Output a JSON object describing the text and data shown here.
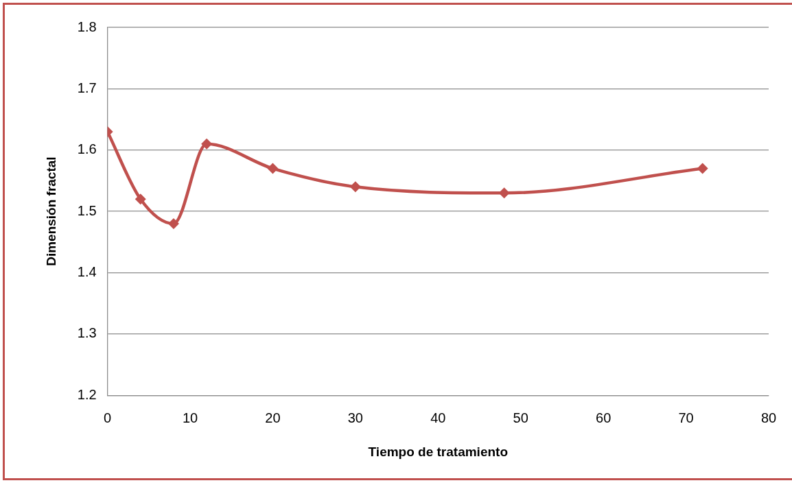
{
  "chart_data": {
    "type": "line",
    "xlabel": "Tiempo de tratamiento",
    "ylabel": "Dimensión fractal",
    "x": [
      0,
      4,
      8,
      12,
      20,
      30,
      48,
      72
    ],
    "series": [
      {
        "color": "#c0504d",
        "values": [
          1.63,
          1.52,
          1.48,
          1.61,
          1.57,
          1.54,
          1.53,
          1.57
        ]
      }
    ],
    "xlim": [
      0,
      80
    ],
    "xticks": [
      0,
      10,
      20,
      30,
      40,
      50,
      60,
      70,
      80
    ],
    "ylim": [
      1.2,
      1.8
    ],
    "yticks": [
      1.2,
      1.3,
      1.4,
      1.5,
      1.6,
      1.7,
      1.8
    ],
    "grid": "y",
    "marker": "diamond",
    "line_style": "solid"
  }
}
